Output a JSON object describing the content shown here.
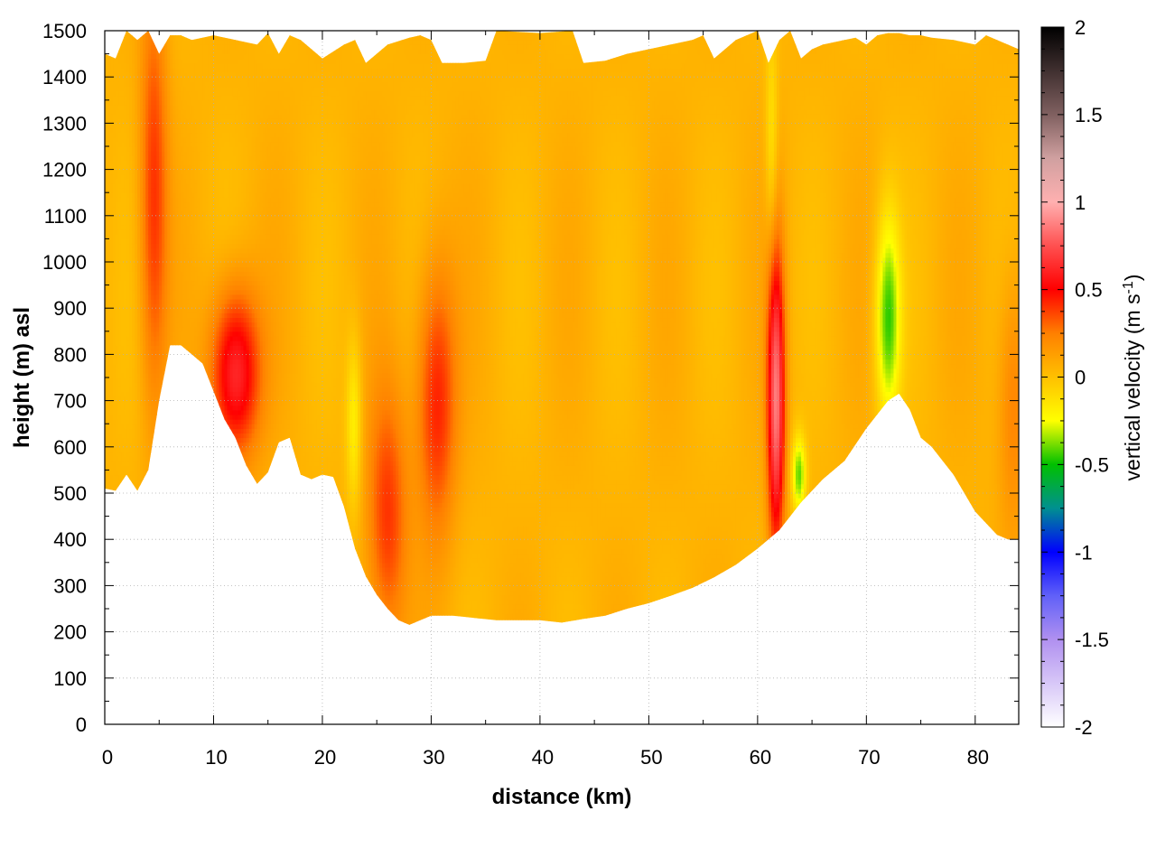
{
  "chart_data": {
    "type": "heatmap",
    "xlabel": "distance (km)",
    "ylabel": "height (m) asl",
    "xlim": [
      0,
      84
    ],
    "ylim": [
      0,
      1500
    ],
    "x_ticks": [
      0,
      10,
      20,
      30,
      40,
      50,
      60,
      70,
      80
    ],
    "y_ticks": [
      0,
      100,
      200,
      300,
      400,
      500,
      600,
      700,
      800,
      900,
      1000,
      1100,
      1200,
      1300,
      1400,
      1500
    ],
    "grid": true,
    "colorbar": {
      "label": "vertical velocity (m s",
      "label_sup": "-1",
      "label_close": ")",
      "range": [
        -2,
        2
      ],
      "ticks": [
        "2",
        "1.5",
        "1",
        "0.5",
        "0",
        "-0.5",
        "-1",
        "-1.5",
        "-2"
      ],
      "palette": [
        {
          "v": -2.0,
          "color": "#ffffff"
        },
        {
          "v": -1.5,
          "color": "#b090f0"
        },
        {
          "v": -1.25,
          "color": "#6060f8"
        },
        {
          "v": -1.0,
          "color": "#0000ff"
        },
        {
          "v": -0.75,
          "color": "#009090"
        },
        {
          "v": -0.5,
          "color": "#00c000"
        },
        {
          "v": -0.25,
          "color": "#ffff00"
        },
        {
          "v": 0.0,
          "color": "#ffc000"
        },
        {
          "v": 0.25,
          "color": "#ff8000"
        },
        {
          "v": 0.5,
          "color": "#ff0000"
        },
        {
          "v": 0.75,
          "color": "#ff5050"
        },
        {
          "v": 1.0,
          "color": "#ffb0b0"
        },
        {
          "v": 1.25,
          "color": "#d0a0a0"
        },
        {
          "v": 1.5,
          "color": "#806060"
        },
        {
          "v": 2.0,
          "color": "#000000"
        }
      ]
    },
    "background_value": 0.05,
    "terrain_bottom": [
      [
        0,
        510
      ],
      [
        1,
        505
      ],
      [
        2,
        540
      ],
      [
        3,
        505
      ],
      [
        4,
        550
      ],
      [
        5,
        700
      ],
      [
        6,
        820
      ],
      [
        7,
        820
      ],
      [
        8,
        800
      ],
      [
        9,
        780
      ],
      [
        10,
        720
      ],
      [
        11,
        660
      ],
      [
        12,
        620
      ],
      [
        13,
        560
      ],
      [
        14,
        520
      ],
      [
        15,
        545
      ],
      [
        16,
        610
      ],
      [
        17,
        620
      ],
      [
        18,
        540
      ],
      [
        19,
        530
      ],
      [
        20,
        540
      ],
      [
        21,
        535
      ],
      [
        22,
        470
      ],
      [
        23,
        380
      ],
      [
        24,
        320
      ],
      [
        25,
        280
      ],
      [
        26,
        250
      ],
      [
        27,
        225
      ],
      [
        28,
        215
      ],
      [
        29,
        225
      ],
      [
        30,
        235
      ],
      [
        32,
        235
      ],
      [
        34,
        230
      ],
      [
        36,
        225
      ],
      [
        38,
        225
      ],
      [
        40,
        225
      ],
      [
        42,
        220
      ],
      [
        44,
        228
      ],
      [
        46,
        235
      ],
      [
        48,
        250
      ],
      [
        50,
        262
      ],
      [
        52,
        278
      ],
      [
        54,
        295
      ],
      [
        56,
        318
      ],
      [
        58,
        345
      ],
      [
        60,
        380
      ],
      [
        62,
        420
      ],
      [
        64,
        480
      ],
      [
        66,
        530
      ],
      [
        68,
        570
      ],
      [
        70,
        640
      ],
      [
        72,
        700
      ],
      [
        73,
        715
      ],
      [
        74,
        680
      ],
      [
        75,
        620
      ],
      [
        76,
        600
      ],
      [
        78,
        540
      ],
      [
        80,
        460
      ],
      [
        82,
        410
      ],
      [
        83,
        400
      ],
      [
        84,
        400
      ]
    ],
    "top_boundary": [
      [
        0,
        1450
      ],
      [
        1,
        1440
      ],
      [
        2,
        1500
      ],
      [
        3,
        1480
      ],
      [
        4,
        1500
      ],
      [
        5,
        1450
      ],
      [
        6,
        1490
      ],
      [
        7,
        1490
      ],
      [
        8,
        1480
      ],
      [
        10,
        1490
      ],
      [
        12,
        1480
      ],
      [
        14,
        1470
      ],
      [
        15,
        1495
      ],
      [
        16,
        1450
      ],
      [
        17,
        1490
      ],
      [
        18,
        1480
      ],
      [
        20,
        1440
      ],
      [
        22,
        1470
      ],
      [
        23,
        1480
      ],
      [
        24,
        1430
      ],
      [
        26,
        1470
      ],
      [
        28,
        1485
      ],
      [
        29,
        1490
      ],
      [
        30,
        1480
      ],
      [
        31,
        1430
      ],
      [
        33,
        1430
      ],
      [
        35,
        1435
      ],
      [
        36,
        1500
      ],
      [
        40,
        1495
      ],
      [
        43,
        1500
      ],
      [
        44,
        1430
      ],
      [
        46,
        1435
      ],
      [
        48,
        1450
      ],
      [
        50,
        1460
      ],
      [
        52,
        1470
      ],
      [
        54,
        1480
      ],
      [
        55,
        1490
      ],
      [
        56,
        1440
      ],
      [
        58,
        1480
      ],
      [
        60,
        1500
      ],
      [
        61,
        1430
      ],
      [
        62,
        1480
      ],
      [
        63,
        1500
      ],
      [
        64,
        1440
      ],
      [
        65,
        1460
      ],
      [
        66,
        1470
      ],
      [
        68,
        1480
      ],
      [
        69,
        1485
      ],
      [
        70,
        1470
      ],
      [
        71,
        1490
      ],
      [
        72,
        1495
      ],
      [
        73,
        1495
      ],
      [
        74,
        1490
      ],
      [
        75,
        1490
      ],
      [
        76,
        1485
      ],
      [
        78,
        1480
      ],
      [
        80,
        1470
      ],
      [
        81,
        1490
      ],
      [
        82,
        1480
      ],
      [
        84,
        1460
      ]
    ],
    "anomalies": [
      {
        "x": 4.5,
        "y": 1150,
        "sx": 0.9,
        "sy": 320,
        "v": 0.35
      },
      {
        "x": 12.0,
        "y": 760,
        "sx": 1.6,
        "sy": 130,
        "v": 0.6
      },
      {
        "x": 22.9,
        "y": 650,
        "sx": 0.5,
        "sy": 130,
        "v": -0.25
      },
      {
        "x": 26.0,
        "y": 450,
        "sx": 1.3,
        "sy": 200,
        "v": 0.35
      },
      {
        "x": 30.5,
        "y": 700,
        "sx": 1.3,
        "sy": 210,
        "v": 0.4
      },
      {
        "x": 61.7,
        "y": 700,
        "sx": 0.55,
        "sy": 230,
        "v": 0.8
      },
      {
        "x": 61.3,
        "y": 1250,
        "sx": 0.4,
        "sy": 180,
        "v": -0.2
      },
      {
        "x": 63.8,
        "y": 540,
        "sx": 0.45,
        "sy": 60,
        "v": -0.45
      },
      {
        "x": 72.0,
        "y": 880,
        "sx": 0.8,
        "sy": 160,
        "v": -0.5
      },
      {
        "x": 83.5,
        "y": 700,
        "sx": 1.0,
        "sy": 200,
        "v": 0.2
      }
    ]
  }
}
